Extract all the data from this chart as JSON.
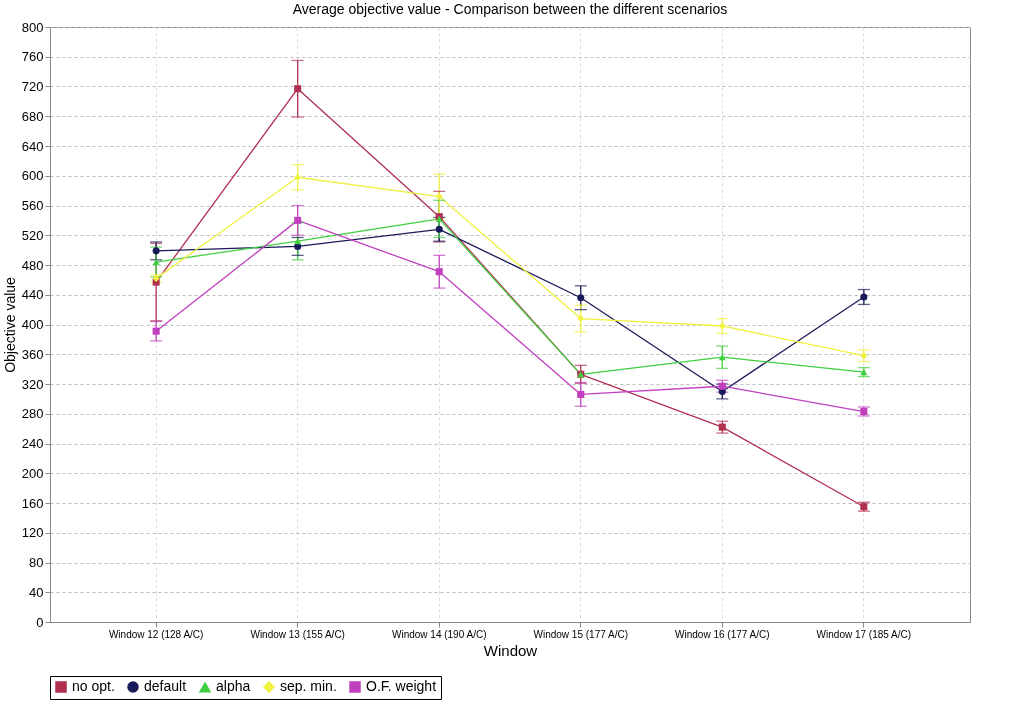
{
  "chart_data": {
    "type": "line",
    "title": "Average objective value - Comparison between the different scenarios",
    "xlabel": "Window",
    "ylabel": "Objective value",
    "categories": [
      "Window 12 (128 A/C)",
      "Window 13 (155 A/C)",
      "Window 14 (190 A/C)",
      "Window 15 (177 A/C)",
      "Window 16 (177 A/C)",
      "Window 17 (185 A/C)"
    ],
    "series": [
      {
        "name": "no opt.",
        "color": "#b03050",
        "marker": "square",
        "values": [
          457,
          717,
          545,
          333,
          262,
          155
        ],
        "errors": [
          52,
          38,
          34,
          12,
          8,
          6
        ]
      },
      {
        "name": "default",
        "color": "#1a1a5a",
        "marker": "circle",
        "values": [
          499,
          505,
          528,
          436,
          310,
          437
        ],
        "errors": [
          12,
          12,
          16,
          16,
          10,
          10
        ]
      },
      {
        "name": "alpha",
        "color": "#40d040",
        "marker": "triangle",
        "values": [
          484,
          512,
          542,
          333,
          356,
          336
        ],
        "errors": [
          20,
          25,
          25,
          null,
          15,
          6
        ]
      },
      {
        "name": "sep. min.",
        "color": "#f0f040",
        "marker": "diamond",
        "values": [
          462,
          598,
          572,
          408,
          398,
          358
        ],
        "errors": [
          5,
          17,
          30,
          18,
          10,
          8
        ]
      },
      {
        "name": "O.F. weight",
        "color": "#c040c0",
        "marker": "square",
        "values": [
          391,
          540,
          471,
          306,
          317,
          283
        ],
        "errors": [
          13,
          20,
          22,
          16,
          8,
          6
        ]
      }
    ],
    "ylim": [
      0,
      800
    ],
    "yticks": [
      0,
      40,
      80,
      120,
      160,
      200,
      240,
      280,
      320,
      360,
      400,
      440,
      480,
      520,
      560,
      600,
      640,
      680,
      720,
      760,
      800
    ],
    "grid": true,
    "legend": "bottom"
  }
}
